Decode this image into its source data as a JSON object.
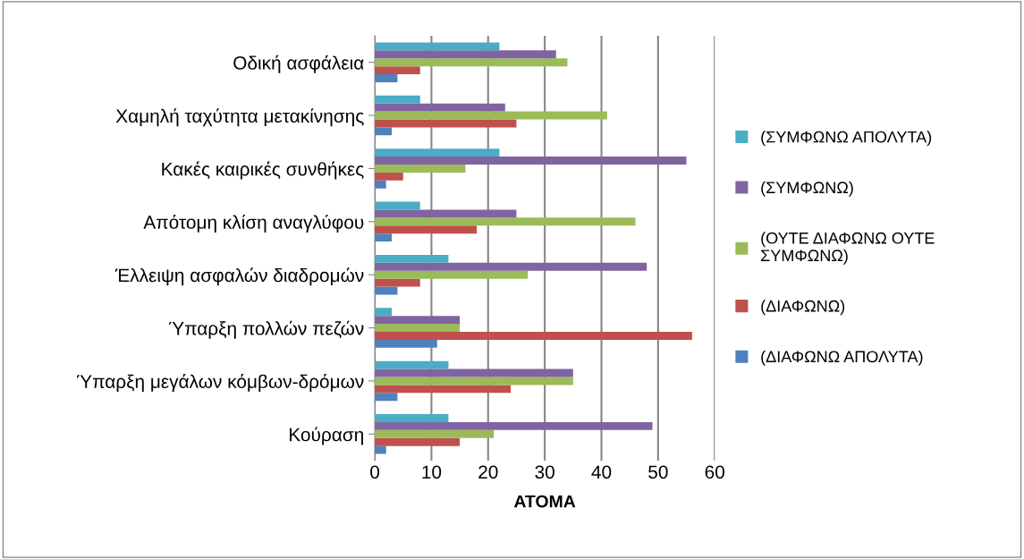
{
  "chart_data": {
    "type": "bar",
    "orientation": "horizontal",
    "xlabel": "ΑΤΟΜΑ",
    "categories": [
      "Οδική ασφάλεια",
      "Χαμηλή ταχύτητα μετακίνησης",
      "Κακές καιρικές συνθήκες",
      "Απότομη κλίση αναγλύφου",
      "Έλλειψη ασφαλών διαδρομών",
      "Ύπαρξη πολλών πεζών",
      "Ύπαρξη μεγάλων κόμβων-δρόμων",
      "Κούραση"
    ],
    "series": [
      {
        "name": "(ΔΙΑΦΩΝΩ ΑΠΟΛΥΤΑ)",
        "color": "#4f81bd",
        "values": [
          4,
          3,
          2,
          3,
          4,
          11,
          4,
          2
        ]
      },
      {
        "name": "(ΔΙΑΦΩΝΩ)",
        "color": "#c0504d",
        "values": [
          8,
          25,
          5,
          18,
          8,
          56,
          24,
          15
        ]
      },
      {
        "name": "(ΟΥΤΕ ΔΙΑΦΩΝΩ ΟΥΤΕ\nΣΥΜΦΩΝΩ)",
        "color": "#9bbb59",
        "values": [
          34,
          41,
          16,
          46,
          27,
          15,
          35,
          21
        ]
      },
      {
        "name": "(ΣΥΜΦΩΝΩ)",
        "color": "#8064a2",
        "values": [
          32,
          23,
          55,
          25,
          48,
          15,
          35,
          49
        ]
      },
      {
        "name": "(ΣΥΜΦΩΝΩ ΑΠΟΛΥΤΑ)",
        "color": "#4bacc6",
        "values": [
          22,
          8,
          22,
          8,
          13,
          3,
          13,
          13
        ]
      }
    ],
    "xlim": [
      0,
      60
    ],
    "xticks": [
      0,
      10,
      20,
      30,
      40,
      50,
      60
    ],
    "grid": "x",
    "legend": "right"
  }
}
